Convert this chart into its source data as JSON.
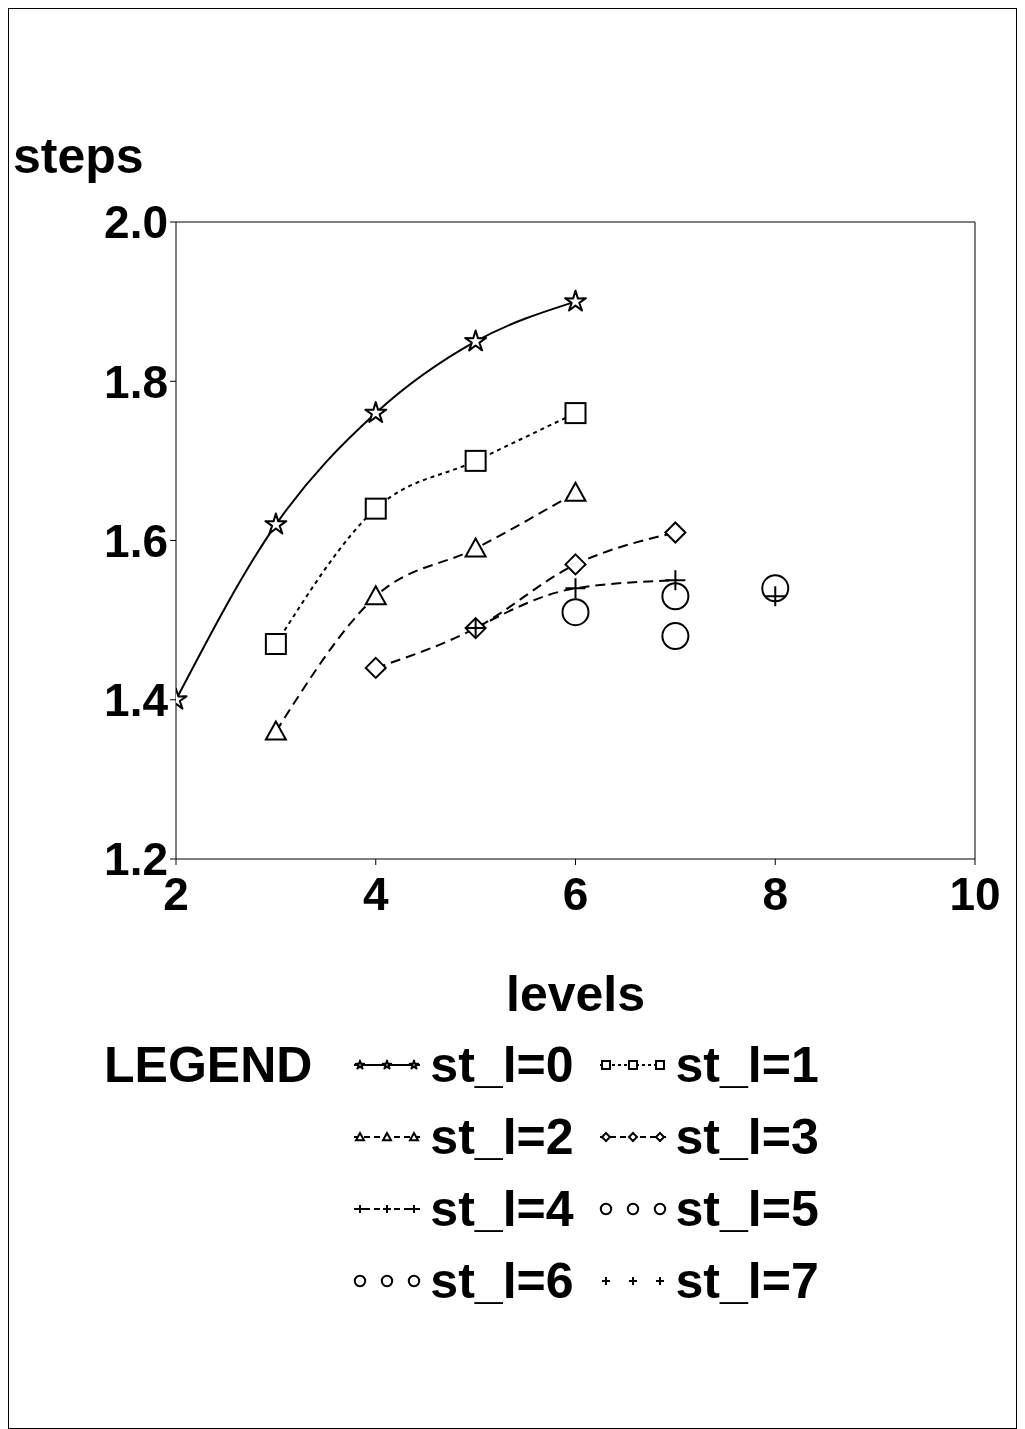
{
  "chart_data": {
    "type": "line",
    "xlabel": "levels",
    "ylabel": "steps",
    "legend_title": "LEGEND",
    "legend": "bottom",
    "grid": false,
    "xlim": [
      2,
      10
    ],
    "xticks": [
      2,
      4,
      6,
      8,
      10
    ],
    "ylim": [
      1.2,
      2.0
    ],
    "yticks": [
      1.2,
      1.4,
      1.6,
      1.8,
      {
        "value": 2,
        "label": "2.0"
      }
    ],
    "series": [
      {
        "name": "st_l=0",
        "color": "#000000",
        "marker": "star",
        "line_style": "solid",
        "x": [
          2,
          3,
          4,
          5,
          6
        ],
        "values": [
          1.4,
          1.62,
          1.76,
          1.85,
          1.9
        ]
      },
      {
        "name": "st_l=1",
        "color": "#000000",
        "marker": "square",
        "line_style": "dotted",
        "x": [
          3,
          4,
          5,
          6
        ],
        "values": [
          1.47,
          1.64,
          1.7,
          1.76
        ]
      },
      {
        "name": "st_l=2",
        "color": "#000000",
        "marker": "triangle",
        "line_style": "dashed",
        "x": [
          3,
          4,
          5,
          6
        ],
        "values": [
          1.36,
          1.53,
          1.59,
          1.66
        ]
      },
      {
        "name": "st_l=3",
        "color": "#000000",
        "marker": "diamond",
        "line_style": "dashed",
        "x": [
          4,
          5,
          6,
          7
        ],
        "values": [
          1.44,
          1.49,
          1.57,
          1.61
        ]
      },
      {
        "name": "st_l=4",
        "color": "#000000",
        "marker": "cross",
        "line_style": "dashed",
        "x": [
          5,
          6,
          7
        ],
        "values": [
          1.49,
          1.54,
          1.55
        ]
      },
      {
        "name": "st_l=5",
        "type": "scatter",
        "color": "#000000",
        "marker": "circle",
        "x": [
          6,
          7
        ],
        "values": [
          1.51,
          1.53
        ]
      },
      {
        "name": "st_l=6",
        "type": "scatter",
        "color": "#000000",
        "marker": "circle",
        "x": [
          7,
          8
        ],
        "values": [
          1.48,
          1.54
        ]
      },
      {
        "name": "st_l=7",
        "type": "scatter",
        "color": "#000000",
        "marker": "cross",
        "x": [
          8
        ],
        "values": [
          1.53
        ]
      }
    ]
  }
}
